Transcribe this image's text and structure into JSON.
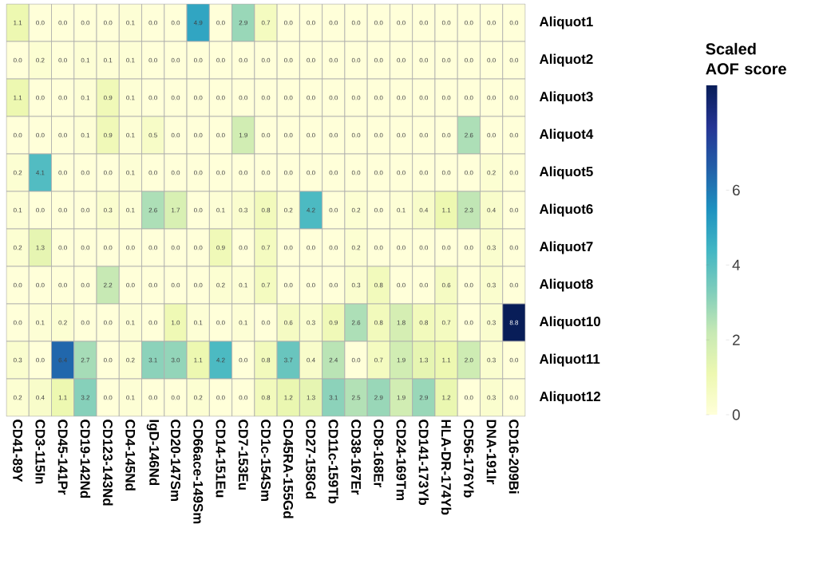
{
  "chart_data": {
    "type": "heatmap",
    "categories": [
      "CD41-89Y",
      "CD3-115In",
      "CD45-141Pr",
      "CD19-142Nd",
      "CD123-143Nd",
      "CD4-145Nd",
      "IgD-146Nd",
      "CD20-147Sm",
      "CD66ace-149Sm",
      "CD14-151Eu",
      "CD7-153Eu",
      "CD1c-154Sm",
      "CD45RA-155Gd",
      "CD27-158Gd",
      "CD11c-159Tb",
      "CD38-167Er",
      "CD8-168Er",
      "CD24-169Tm",
      "CD141-173Yb",
      "HLA-DR-174Yb",
      "CD56-176Yb",
      "DNA-191Ir",
      "CD16-209Bi"
    ],
    "y_categories": [
      "Aliquot1",
      "Aliquot2",
      "Aliquot3",
      "Aliquot4",
      "Aliquot5",
      "Aliquot6",
      "Aliquot7",
      "Aliquot8",
      "Aliquot10",
      "Aliquot11",
      "Aliquot12"
    ],
    "cells": [
      [
        1.1,
        0,
        0,
        0,
        0,
        0.1,
        0,
        0,
        4.9,
        0,
        2.9,
        0.7,
        0,
        0,
        0,
        0,
        0,
        0,
        0,
        0,
        0,
        0,
        0
      ],
      [
        0,
        0.2,
        0,
        0.1,
        0.1,
        0.1,
        0,
        0,
        0,
        0,
        0,
        0,
        0,
        0,
        0,
        0,
        0,
        0,
        0,
        0,
        0,
        0,
        0
      ],
      [
        1.1,
        0,
        0,
        0.1,
        0.9,
        0.1,
        0,
        0,
        0,
        0,
        0,
        0,
        0,
        0,
        0,
        0,
        0,
        0,
        0,
        0,
        0,
        0,
        0
      ],
      [
        0,
        0,
        0,
        0.1,
        0.9,
        0.1,
        0.5,
        0,
        0,
        0,
        1.9,
        0,
        0,
        0,
        0,
        0,
        0,
        0,
        0,
        0,
        2.6,
        0,
        0
      ],
      [
        0.2,
        4.1,
        0,
        0,
        0,
        0.1,
        0,
        0,
        0,
        0,
        0,
        0,
        0,
        0,
        0,
        0,
        0,
        0,
        0,
        0,
        0,
        0.2,
        0
      ],
      [
        0.1,
        0,
        0,
        0,
        0.3,
        0.1,
        2.6,
        1.7,
        0,
        0.1,
        0.3,
        0.8,
        0.2,
        4.2,
        0,
        0.2,
        0,
        0.1,
        0.4,
        1.1,
        2.3,
        0.4,
        0
      ],
      [
        0.2,
        1.3,
        0,
        0,
        0,
        0,
        0,
        0,
        0,
        0.9,
        0,
        0.7,
        0,
        0,
        0,
        0.2,
        0,
        0,
        0,
        0,
        0,
        0.3,
        0
      ],
      [
        0,
        0,
        0,
        0,
        2.2,
        0,
        0,
        0,
        0,
        0.2,
        0.1,
        0.7,
        0,
        0,
        0,
        0.3,
        0.8,
        0,
        0,
        0.6,
        0,
        0.3,
        0
      ],
      [
        0,
        0.1,
        0.2,
        0,
        0,
        0.1,
        0,
        1.0,
        0.1,
        0,
        0.1,
        0,
        0.6,
        0.3,
        0.9,
        2.6,
        0.8,
        1.8,
        0.8,
        0.7,
        0,
        0.3,
        8.8
      ],
      [
        0.3,
        0,
        6.4,
        2.7,
        0,
        0.2,
        3.1,
        3.0,
        1.1,
        4.2,
        0,
        0.8,
        3.7,
        0.4,
        2.4,
        0,
        0.7,
        1.9,
        1.3,
        1.1,
        2.0,
        0.3,
        0
      ],
      [
        0.2,
        0.4,
        1.1,
        3.2,
        0,
        0.1,
        0,
        0,
        0.2,
        0,
        0,
        0.8,
        1.2,
        1.3,
        3.1,
        2.5,
        2.9,
        1.9,
        2.9,
        1.2,
        0,
        0.3,
        0
      ]
    ],
    "cell_labels": [
      [
        "1.1",
        "0.0",
        "0.0",
        "0.0",
        "0.0",
        "0.1",
        "0.0",
        "0.0",
        "4.9",
        "0.0",
        "2.9",
        "0.7",
        "0.0",
        "0.0",
        "0.0",
        "0.0",
        "0.0",
        "0.0",
        "0.0",
        "0.0",
        "0.0",
        "0.0",
        "0.0"
      ],
      [
        "0.0",
        "0.2",
        "0.0",
        "0.1",
        "0.1",
        "0.1",
        "0.0",
        "0.0",
        "0.0",
        "0.0",
        "0.0",
        "0.0",
        "0.0",
        "0.0",
        "0.0",
        "0.0",
        "0.0",
        "0.0",
        "0.0",
        "0.0",
        "0.0",
        "0.0",
        "0.0"
      ],
      [
        "1.1",
        "0.0",
        "0.0",
        "0.1",
        "0.9",
        "0.1",
        "0.0",
        "0.0",
        "0.0",
        "0.0",
        "0.0",
        "0.0",
        "0.0",
        "0.0",
        "0.0",
        "0.0",
        "0.0",
        "0.0",
        "0.0",
        "0.0",
        "0.0",
        "0.0",
        "0.0"
      ],
      [
        "0.0",
        "0.0",
        "0.0",
        "0.1",
        "0.9",
        "0.1",
        "0.5",
        "0.0",
        "0.0",
        "0.0",
        "1.9",
        "0.0",
        "0.0",
        "0.0",
        "0.0",
        "0.0",
        "0.0",
        "0.0",
        "0.0",
        "0.0",
        "2.6",
        "0.0",
        "0.0"
      ],
      [
        "0.2",
        "4.1",
        "0.0",
        "0.0",
        "0.0",
        "0.1",
        "0.0",
        "0.0",
        "0.0",
        "0.0",
        "0.0",
        "0.0",
        "0.0",
        "0.0",
        "0.0",
        "0.0",
        "0.0",
        "0.0",
        "0.0",
        "0.0",
        "0.0",
        "0.2",
        "0.0"
      ],
      [
        "0.1",
        "0.0",
        "0.0",
        "0.0",
        "0.3",
        "0.1",
        "2.6",
        "1.7",
        "0.0",
        "0.1",
        "0.3",
        "0.8",
        "0.2",
        "4.2",
        "0.0",
        "0.2",
        "0.0",
        "0.1",
        "0.4",
        "1.1",
        "2.3",
        "0.4",
        "0.0"
      ],
      [
        "0.2",
        "1.3",
        "0.0",
        "0.0",
        "0.0",
        "0.0",
        "0.0",
        "0.0",
        "0.0",
        "0.9",
        "0.0",
        "0.7",
        "0.0",
        "0.0",
        "0.0",
        "0.2",
        "0.0",
        "0.0",
        "0.0",
        "0.0",
        "0.0",
        "0.3",
        "0.0"
      ],
      [
        "0.0",
        "0.0",
        "0.0",
        "0.0",
        "2.2",
        "0.0",
        "0.0",
        "0.0",
        "0.0",
        "0.2",
        "0.1",
        "0.7",
        "0.0",
        "0.0",
        "0.0",
        "0.3",
        "0.8",
        "0.0",
        "0.0",
        "0.6",
        "0.0",
        "0.3",
        "0.0"
      ],
      [
        "0.0",
        "0.1",
        "0.2",
        "0.0",
        "0.0",
        "0.1",
        "0.0",
        "1.0",
        "0.1",
        "0.0",
        "0.1",
        "0.0",
        "0.6",
        "0.3",
        "0.9",
        "2.6",
        "0.8",
        "1.8",
        "0.8",
        "0.7",
        "0.0",
        "0.3",
        "8.8"
      ],
      [
        "0.3",
        "0.0",
        "6.4",
        "2.7",
        "0.0",
        "0.2",
        "3.1",
        "3.0",
        "1.1",
        "4.2",
        "0.0",
        "0.8",
        "3.7",
        "0.4",
        "2.4",
        "0.0",
        "0.7",
        "1.9",
        "1.3",
        "1.1",
        "2.0",
        "0.3",
        "0.0"
      ],
      [
        "0.2",
        "0.4",
        "1.1",
        "3.2",
        "0.0",
        "0.1",
        "0.0",
        "0.0",
        "0.2",
        "0.0",
        "0.0",
        "0.8",
        "1.2",
        "1.3",
        "3.1",
        "2.5",
        "2.9",
        "1.9",
        "2.9",
        "1.2",
        "0.0",
        "0.3",
        "0.0"
      ]
    ],
    "clabel": "Scaled AOF score",
    "clim": [
      0,
      8.8
    ],
    "cticks": [
      0,
      2,
      4,
      6
    ]
  }
}
